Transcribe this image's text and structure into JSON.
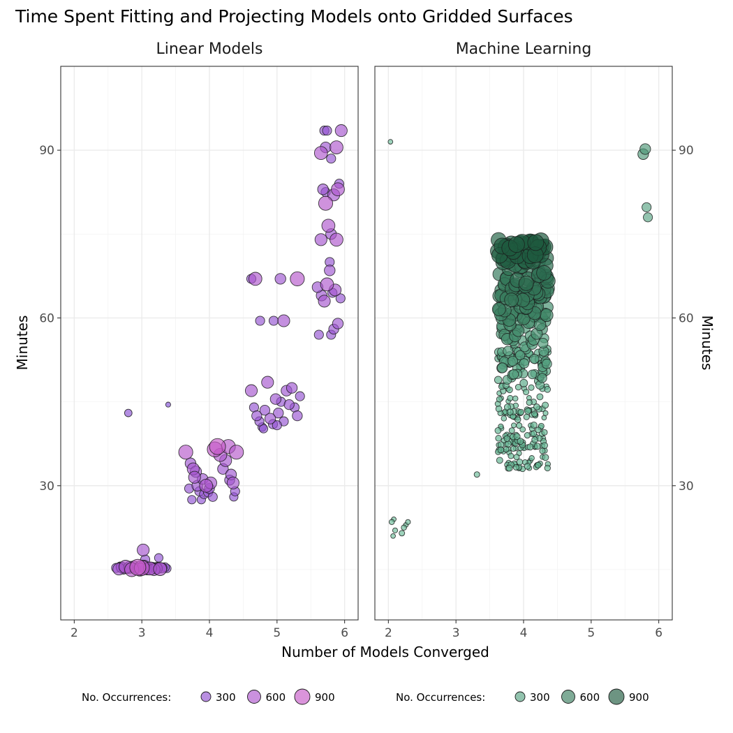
{
  "chart_data": {
    "type": "scatter",
    "title": "Time Spent Fitting and Projecting Models onto Gridded Surfaces",
    "xlabel": "Number of Models Converged",
    "ylabel": "Minutes",
    "xlim": [
      1.8,
      6.2
    ],
    "ylim": [
      6,
      105
    ],
    "x_ticks": [
      2,
      3,
      4,
      5,
      6
    ],
    "y_ticks": [
      30,
      60,
      90
    ],
    "y_minor": [
      15,
      45,
      75
    ],
    "grid": true,
    "legend_position": "bottom",
    "legend": {
      "title": "No. Occurrences:",
      "sizes": [
        300,
        600,
        900
      ],
      "labels": [
        "300",
        "600",
        "900"
      ]
    },
    "panels": [
      {
        "name": "Linear Models",
        "color_low": "#7a4fd6",
        "color_high": "#c65ac8",
        "points": [
          [
            2.62,
            15.3,
            300
          ],
          [
            2.66,
            15.1,
            500
          ],
          [
            2.7,
            15.4,
            400
          ],
          [
            2.73,
            15.0,
            300
          ],
          [
            2.76,
            15.5,
            600
          ],
          [
            2.79,
            15.2,
            350
          ],
          [
            2.82,
            15.4,
            500
          ],
          [
            2.85,
            15.0,
            700
          ],
          [
            2.88,
            15.6,
            400
          ],
          [
            2.91,
            15.2,
            300
          ],
          [
            2.94,
            15.4,
            900
          ],
          [
            2.97,
            15.0,
            600
          ],
          [
            3.0,
            15.3,
            800
          ],
          [
            3.03,
            15.6,
            500
          ],
          [
            3.06,
            15.1,
            400
          ],
          [
            3.09,
            15.4,
            350
          ],
          [
            3.12,
            15.2,
            600
          ],
          [
            3.15,
            15.5,
            300
          ],
          [
            3.18,
            15.0,
            500
          ],
          [
            3.21,
            15.3,
            400
          ],
          [
            3.24,
            15.5,
            300
          ],
          [
            3.27,
            15.1,
            600
          ],
          [
            3.3,
            15.3,
            350
          ],
          [
            3.34,
            15.4,
            300
          ],
          [
            3.37,
            15.2,
            250
          ],
          [
            2.68,
            15.6,
            250
          ],
          [
            2.92,
            15.1,
            300
          ],
          [
            3.08,
            15.0,
            400
          ],
          [
            3.22,
            15.2,
            450
          ],
          [
            3.02,
            18.5,
            500
          ],
          [
            3.05,
            16.8,
            300
          ],
          [
            3.25,
            17.1,
            250
          ],
          [
            2.8,
            43.0,
            200
          ],
          [
            3.39,
            44.5,
            90
          ],
          [
            3.65,
            36.0,
            700
          ],
          [
            3.72,
            34.0,
            400
          ],
          [
            3.76,
            33.0,
            500
          ],
          [
            3.78,
            31.5,
            500
          ],
          [
            3.7,
            29.5,
            300
          ],
          [
            3.74,
            27.5,
            250
          ],
          [
            3.82,
            30.0,
            400
          ],
          [
            3.85,
            29.0,
            300
          ],
          [
            3.88,
            27.5,
            250
          ],
          [
            3.92,
            28.5,
            300
          ],
          [
            3.95,
            30.0,
            600
          ],
          [
            3.98,
            28.8,
            300
          ],
          [
            4.02,
            30.5,
            500
          ],
          [
            4.05,
            28.0,
            300
          ],
          [
            4.08,
            36.5,
            800
          ],
          [
            4.12,
            37.0,
            900
          ],
          [
            4.16,
            35.5,
            600
          ],
          [
            4.2,
            33.0,
            400
          ],
          [
            4.24,
            34.5,
            500
          ],
          [
            4.28,
            37.0,
            700
          ],
          [
            4.32,
            32.0,
            400
          ],
          [
            4.35,
            30.5,
            500
          ],
          [
            4.38,
            29.0,
            300
          ],
          [
            4.4,
            36.0,
            700
          ],
          [
            3.8,
            32.5,
            450
          ],
          [
            3.9,
            31.2,
            400
          ],
          [
            4.0,
            29.5,
            350
          ],
          [
            4.3,
            31.0,
            350
          ],
          [
            4.36,
            28.0,
            250
          ],
          [
            4.62,
            47.0,
            500
          ],
          [
            4.66,
            44.0,
            300
          ],
          [
            4.7,
            42.5,
            350
          ],
          [
            4.74,
            41.5,
            300
          ],
          [
            4.78,
            40.5,
            250
          ],
          [
            4.82,
            43.5,
            350
          ],
          [
            4.86,
            48.5,
            500
          ],
          [
            4.9,
            42.0,
            400
          ],
          [
            4.94,
            41.0,
            300
          ],
          [
            4.98,
            45.5,
            400
          ],
          [
            5.02,
            43.0,
            350
          ],
          [
            5.06,
            45.0,
            300
          ],
          [
            5.1,
            41.5,
            300
          ],
          [
            5.14,
            47.0,
            400
          ],
          [
            5.18,
            44.5,
            350
          ],
          [
            5.22,
            47.5,
            400
          ],
          [
            5.26,
            44.0,
            300
          ],
          [
            5.3,
            42.5,
            350
          ],
          [
            5.34,
            46.0,
            300
          ],
          [
            4.68,
            67.0,
            600
          ],
          [
            4.75,
            59.5,
            300
          ],
          [
            4.95,
            59.5,
            300
          ],
          [
            5.1,
            59.5,
            500
          ],
          [
            4.62,
            67.0,
            300
          ],
          [
            5.05,
            67.0,
            400
          ],
          [
            5.3,
            67.0,
            700
          ],
          [
            4.8,
            40.2,
            250
          ],
          [
            5.0,
            40.8,
            300
          ],
          [
            5.62,
            57.0,
            300
          ],
          [
            5.66,
            64.0,
            400
          ],
          [
            5.7,
            63.0,
            500
          ],
          [
            5.74,
            66.0,
            600
          ],
          [
            5.78,
            68.5,
            400
          ],
          [
            5.82,
            64.5,
            300
          ],
          [
            5.86,
            65.0,
            500
          ],
          [
            5.9,
            59.0,
            400
          ],
          [
            5.94,
            63.5,
            300
          ],
          [
            5.8,
            57.0,
            300
          ],
          [
            5.84,
            58.0,
            350
          ],
          [
            5.65,
            74.0,
            500
          ],
          [
            5.72,
            80.5,
            700
          ],
          [
            5.76,
            76.5,
            600
          ],
          [
            5.8,
            75.0,
            400
          ],
          [
            5.84,
            82.0,
            500
          ],
          [
            5.88,
            74.0,
            600
          ],
          [
            5.92,
            84.0,
            300
          ],
          [
            5.68,
            83.0,
            400
          ],
          [
            5.72,
            82.5,
            300
          ],
          [
            5.65,
            89.5,
            600
          ],
          [
            5.72,
            90.5,
            400
          ],
          [
            5.8,
            88.5,
            300
          ],
          [
            5.88,
            90.5,
            600
          ],
          [
            5.95,
            93.5,
            500
          ],
          [
            5.7,
            93.5,
            300
          ],
          [
            5.74,
            93.5,
            300
          ],
          [
            5.9,
            83.0,
            600
          ],
          [
            5.6,
            65.5,
            400
          ],
          [
            5.78,
            70.0,
            300
          ]
        ]
      },
      {
        "name": "Machine Learning",
        "color_low": "#73c7a3",
        "color_high": "#1e5a3f",
        "points": [
          [
            2.03,
            91.5,
            80
          ],
          [
            2.05,
            23.5,
            100
          ],
          [
            2.08,
            24.0,
            80
          ],
          [
            2.1,
            22.0,
            90
          ],
          [
            2.2,
            21.5,
            110
          ],
          [
            2.23,
            22.5,
            100
          ],
          [
            2.26,
            23.0,
            80
          ],
          [
            2.29,
            23.5,
            90
          ],
          [
            2.07,
            21.0,
            80
          ],
          [
            3.31,
            32.0,
            110
          ],
          [
            5.77,
            89.3,
            400
          ],
          [
            5.8,
            90.2,
            400
          ],
          [
            5.82,
            79.8,
            300
          ],
          [
            5.84,
            78.0,
            300
          ]
        ]
      }
    ]
  }
}
